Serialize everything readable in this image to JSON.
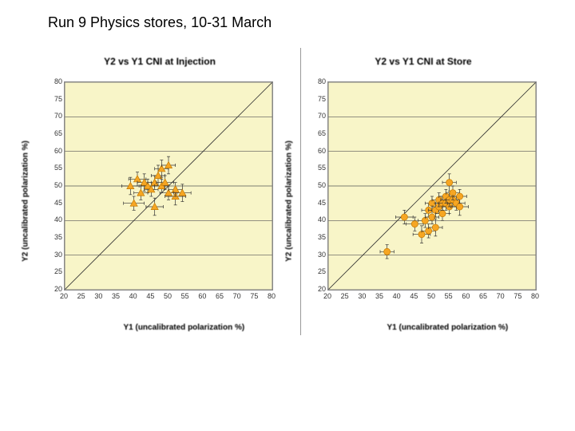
{
  "page": {
    "title": "Run 9 Physics stores, 10-31 March"
  },
  "common": {
    "xlim": [
      20,
      80
    ],
    "ylim": [
      20,
      80
    ],
    "ticks": [
      20,
      25,
      30,
      35,
      40,
      45,
      50,
      55,
      60,
      65,
      70,
      75,
      80
    ],
    "grid_y": [
      20,
      30,
      40,
      50,
      60,
      70,
      80
    ],
    "plot_bg": "#f8f5c8",
    "grid_color": "#555555",
    "axis_color": "#808080",
    "marker_fill": "#f6a623",
    "marker_stroke": "#c47a00",
    "marker_size": 4.5,
    "font_family": "Arial",
    "title_fontsize": 12,
    "tick_fontsize": 9,
    "label_fontsize": 10,
    "xlabel": "Y1 (uncalibrated polarization %)",
    "ylabel": "Y2 (uncalibrated polarization %)"
  },
  "charts": [
    {
      "key": "injection",
      "title": "Y2 vs Y1 CNI at Injection",
      "marker_shape": "triangle",
      "points": [
        {
          "x": 39,
          "y": 50,
          "ex": 2.5,
          "ey": 2.5
        },
        {
          "x": 40,
          "y": 45,
          "ex": 3.0,
          "ey": 2.0
        },
        {
          "x": 41,
          "y": 52,
          "ex": 2.5,
          "ey": 2.0
        },
        {
          "x": 42,
          "y": 48,
          "ex": 2.0,
          "ey": 2.0
        },
        {
          "x": 43,
          "y": 51,
          "ex": 2.0,
          "ey": 2.5
        },
        {
          "x": 44,
          "y": 50,
          "ex": 2.0,
          "ey": 2.0
        },
        {
          "x": 45,
          "y": 49,
          "ex": 2.0,
          "ey": 2.0
        },
        {
          "x": 46,
          "y": 51,
          "ex": 2.0,
          "ey": 2.0
        },
        {
          "x": 46,
          "y": 44,
          "ex": 2.5,
          "ey": 2.5
        },
        {
          "x": 47,
          "y": 53,
          "ex": 2.0,
          "ey": 3.0
        },
        {
          "x": 48,
          "y": 50,
          "ex": 2.0,
          "ey": 2.0
        },
        {
          "x": 48,
          "y": 55,
          "ex": 2.0,
          "ey": 2.5
        },
        {
          "x": 49,
          "y": 51,
          "ex": 2.5,
          "ey": 2.0
        },
        {
          "x": 50,
          "y": 48,
          "ex": 2.5,
          "ey": 2.0
        },
        {
          "x": 50,
          "y": 56,
          "ex": 2.0,
          "ey": 2.5
        },
        {
          "x": 52,
          "y": 47,
          "ex": 3.0,
          "ey": 2.5
        },
        {
          "x": 52,
          "y": 49,
          "ex": 2.0,
          "ey": 2.0
        },
        {
          "x": 54,
          "y": 48,
          "ex": 2.5,
          "ey": 2.5
        }
      ]
    },
    {
      "key": "store",
      "title": "Y2 vs Y1 CNI at Store",
      "marker_shape": "circle",
      "points": [
        {
          "x": 37,
          "y": 31,
          "ex": 2.0,
          "ey": 2.0
        },
        {
          "x": 42,
          "y": 41,
          "ex": 2.5,
          "ey": 2.0
        },
        {
          "x": 45,
          "y": 39,
          "ex": 2.5,
          "ey": 2.0
        },
        {
          "x": 47,
          "y": 36,
          "ex": 2.5,
          "ey": 2.5
        },
        {
          "x": 48,
          "y": 40,
          "ex": 2.0,
          "ey": 2.0
        },
        {
          "x": 49,
          "y": 37,
          "ex": 2.0,
          "ey": 2.0
        },
        {
          "x": 49,
          "y": 43,
          "ex": 2.0,
          "ey": 2.0
        },
        {
          "x": 50,
          "y": 41,
          "ex": 2.0,
          "ey": 2.0
        },
        {
          "x": 50,
          "y": 45,
          "ex": 2.0,
          "ey": 2.0
        },
        {
          "x": 51,
          "y": 38,
          "ex": 2.0,
          "ey": 2.5
        },
        {
          "x": 51,
          "y": 43,
          "ex": 2.0,
          "ey": 2.0
        },
        {
          "x": 52,
          "y": 44,
          "ex": 2.0,
          "ey": 2.0
        },
        {
          "x": 52,
          "y": 46,
          "ex": 2.0,
          "ey": 2.0
        },
        {
          "x": 53,
          "y": 42,
          "ex": 2.0,
          "ey": 2.0
        },
        {
          "x": 53,
          "y": 45,
          "ex": 2.0,
          "ey": 2.0
        },
        {
          "x": 54,
          "y": 45,
          "ex": 2.0,
          "ey": 2.0
        },
        {
          "x": 54,
          "y": 47,
          "ex": 2.0,
          "ey": 2.0
        },
        {
          "x": 55,
          "y": 44,
          "ex": 2.0,
          "ey": 2.0
        },
        {
          "x": 55,
          "y": 46,
          "ex": 2.5,
          "ey": 2.0
        },
        {
          "x": 55,
          "y": 51,
          "ex": 2.0,
          "ey": 2.5
        },
        {
          "x": 56,
          "y": 46,
          "ex": 2.0,
          "ey": 2.0
        },
        {
          "x": 56,
          "y": 48,
          "ex": 2.0,
          "ey": 2.0
        },
        {
          "x": 57,
          "y": 45,
          "ex": 2.5,
          "ey": 2.0
        },
        {
          "x": 58,
          "y": 44,
          "ex": 2.5,
          "ey": 2.5
        },
        {
          "x": 58,
          "y": 47,
          "ex": 2.0,
          "ey": 2.0
        }
      ]
    }
  ]
}
